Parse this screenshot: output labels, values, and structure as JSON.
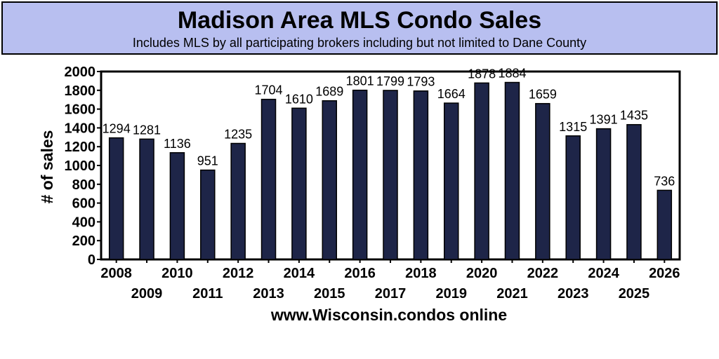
{
  "chart_data": {
    "type": "bar",
    "title": "Madison Area MLS Condo Sales",
    "subtitle": "Includes MLS by all participating brokers including but not limited to Dane County",
    "ylabel": "# of sales",
    "xlabel": "www.Wisconsin.condos online",
    "categories": [
      "2008",
      "2009",
      "2010",
      "2011",
      "2012",
      "2013",
      "2014",
      "2015",
      "2016",
      "2017",
      "2018",
      "2019",
      "2020",
      "2021",
      "2022",
      "2023",
      "2024",
      "2025",
      "2026"
    ],
    "values": [
      1294,
      1281,
      1136,
      951,
      1235,
      1704,
      1610,
      1689,
      1801,
      1799,
      1793,
      1664,
      1878,
      1884,
      1659,
      1315,
      1391,
      1435,
      736
    ],
    "ylim": [
      0,
      2000
    ],
    "yticks": [
      0,
      200,
      400,
      600,
      800,
      1000,
      1200,
      1400,
      1600,
      1800,
      2000
    ],
    "grid": false,
    "bar_color": "#1e2548"
  }
}
